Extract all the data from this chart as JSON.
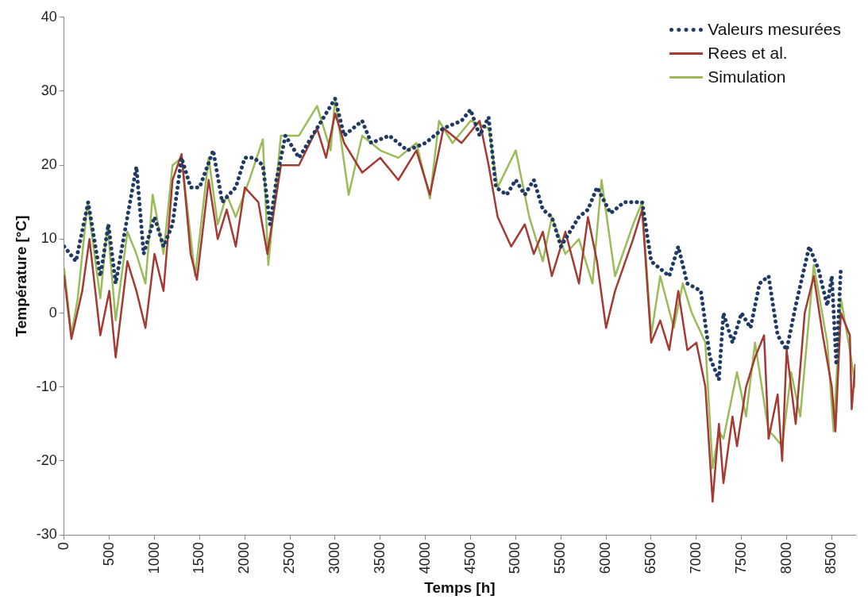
{
  "chart_data": {
    "type": "line",
    "xlabel": "Temps [h]",
    "ylabel": "Température [°C]",
    "xlim": [
      0,
      8760
    ],
    "xticks": [
      0,
      500,
      1000,
      1500,
      2000,
      2500,
      3000,
      3500,
      4000,
      4500,
      5000,
      5500,
      6000,
      6500,
      7000,
      7500,
      8000,
      8500
    ],
    "ylim": [
      -30,
      40
    ],
    "yticks": [
      -30,
      -20,
      -10,
      0,
      10,
      20,
      30,
      40
    ],
    "grid": false,
    "legend": "top right",
    "marker": "none",
    "series": [
      {
        "name": "Valeurs mesurées",
        "color": "#1f3b63",
        "line_style": "dotted",
        "x": [
          0,
          130,
          266,
          400,
          490,
          570,
          700,
          800,
          880,
          1000,
          1100,
          1200,
          1300,
          1400,
          1500,
          1650,
          1750,
          1900,
          2000,
          2100,
          2200,
          2280,
          2350,
          2450,
          2600,
          2800,
          3000,
          3100,
          3200,
          3300,
          3400,
          3600,
          3800,
          4000,
          4200,
          4400,
          4500,
          4600,
          4700,
          4780,
          4900,
          5000,
          5100,
          5200,
          5300,
          5400,
          5500,
          5700,
          5800,
          5900,
          6050,
          6200,
          6400,
          6500,
          6700,
          6800,
          6900,
          7050,
          7150,
          7250,
          7300,
          7400,
          7500,
          7600,
          7700,
          7800,
          7900,
          8000,
          8100,
          8250,
          8350,
          8450,
          8500,
          8550,
          8600
        ],
        "values": [
          9,
          7,
          15,
          5,
          12,
          4,
          13,
          19.8,
          8,
          13,
          9,
          12,
          21,
          17,
          17,
          22,
          15,
          17,
          21,
          21,
          20,
          12,
          18,
          24,
          21,
          25,
          29,
          24,
          25,
          26,
          23,
          24,
          22,
          23,
          25,
          26,
          27.5,
          24,
          26.5,
          17,
          16,
          18,
          16,
          18,
          14,
          13,
          9,
          13,
          14,
          17,
          13.5,
          15,
          15,
          7,
          5,
          9,
          4,
          3,
          -6,
          -9,
          0,
          -4,
          0,
          -2,
          4,
          5,
          -3,
          -5,
          1,
          9,
          6,
          1,
          5,
          -7,
          6
        ]
      },
      {
        "name": "Rees et al.",
        "color": "#a33a33",
        "line_style": "solid",
        "x": [
          0,
          80,
          200,
          280,
          400,
          500,
          570,
          700,
          800,
          900,
          1000,
          1100,
          1200,
          1300,
          1400,
          1470,
          1600,
          1700,
          1800,
          1900,
          2000,
          2150,
          2250,
          2400,
          2600,
          2800,
          2900,
          3000,
          3100,
          3300,
          3500,
          3700,
          3900,
          4050,
          4200,
          4400,
          4600,
          4700,
          4800,
          4950,
          5100,
          5200,
          5300,
          5400,
          5550,
          5700,
          5800,
          5900,
          6000,
          6100,
          6300,
          6400,
          6500,
          6600,
          6700,
          6800,
          6900,
          7000,
          7100,
          7180,
          7250,
          7300,
          7400,
          7450,
          7550,
          7650,
          7750,
          7800,
          7900,
          7950,
          8000,
          8100,
          8200,
          8300,
          8400,
          8500,
          8540,
          8600,
          8700,
          8720,
          8760
        ],
        "values": [
          5,
          -3.5,
          3,
          10,
          -3,
          3,
          -6,
          7,
          3,
          -2,
          8,
          3,
          18,
          21.5,
          8,
          4.5,
          18,
          10,
          14,
          9,
          17,
          15,
          8,
          20,
          20,
          25,
          21,
          27,
          23,
          19,
          21,
          18,
          22,
          16,
          25,
          23,
          26,
          20,
          13,
          9,
          12,
          8,
          11,
          5,
          11,
          4,
          13,
          7,
          -2,
          3,
          10,
          14,
          -4,
          -1,
          -5,
          3,
          -5,
          -4,
          -10,
          -25.5,
          -15,
          -23,
          -14,
          -18,
          -10,
          -6,
          -3,
          -17,
          -11,
          -20,
          -5,
          -15,
          0,
          5,
          -3,
          -10,
          -16,
          0,
          -3,
          -13,
          -7
        ]
      },
      {
        "name": "Simulation",
        "color": "#9bbb59",
        "line_style": "solid",
        "x": [
          0,
          80,
          150,
          260,
          400,
          480,
          570,
          700,
          800,
          900,
          980,
          1100,
          1200,
          1300,
          1450,
          1600,
          1700,
          1800,
          1900,
          2050,
          2200,
          2260,
          2400,
          2600,
          2800,
          2950,
          3000,
          3150,
          3300,
          3500,
          3700,
          3900,
          4050,
          4150,
          4300,
          4500,
          4700,
          4800,
          5000,
          5150,
          5300,
          5400,
          5550,
          5700,
          5850,
          5950,
          6100,
          6300,
          6400,
          6500,
          6600,
          6750,
          6850,
          6950,
          7100,
          7180,
          7250,
          7300,
          7450,
          7550,
          7650,
          7800,
          7850,
          7950,
          8050,
          8150,
          8300,
          8450,
          8520,
          8600,
          8700,
          8760
        ],
        "values": [
          6,
          -3,
          2,
          15,
          2,
          12,
          -1,
          11,
          8,
          4,
          16,
          8,
          20,
          21,
          5,
          21,
          12,
          16,
          13,
          18,
          23.5,
          6.5,
          24,
          24,
          28,
          22,
          29,
          16,
          24,
          22,
          21,
          23,
          15.5,
          26,
          23,
          26,
          25,
          17,
          22,
          13,
          7,
          13,
          8,
          10,
          4,
          18,
          5,
          12,
          15,
          -3,
          5,
          -2,
          4,
          0,
          -4,
          -21,
          -16,
          -17,
          -8,
          -14,
          -4,
          -16,
          -16.5,
          -18,
          -8,
          -14,
          6.5,
          -4,
          -16,
          2,
          -5,
          -10
        ]
      }
    ]
  }
}
